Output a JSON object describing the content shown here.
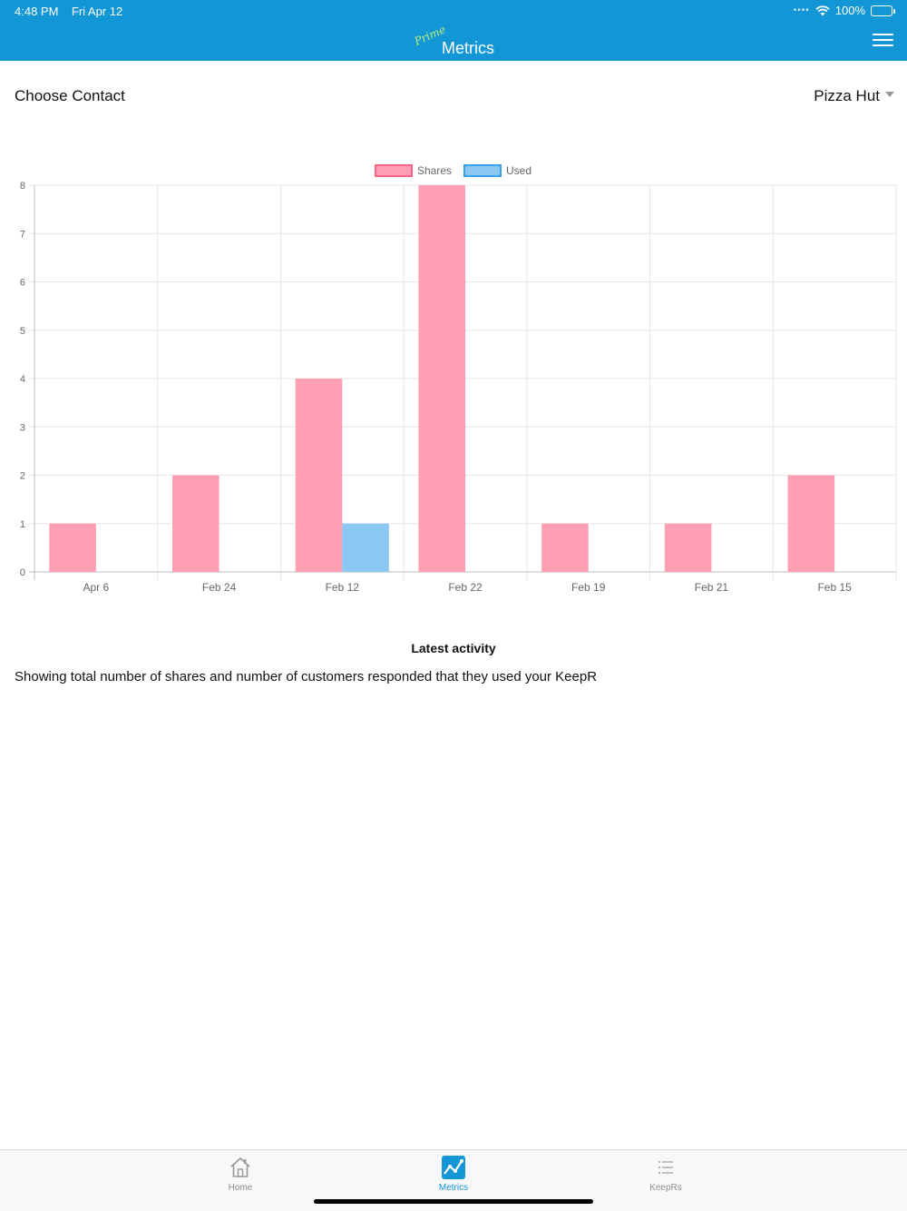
{
  "status_bar": {
    "time": "4:48 PM",
    "date": "Fri Apr 12",
    "battery": "100%"
  },
  "header": {
    "brand_prefix": "Prime",
    "title": "Metrics",
    "menu_icon": "hamburger-menu-icon"
  },
  "contact": {
    "label": "Choose Contact",
    "selected": "Pizza Hut"
  },
  "chart_data": {
    "type": "bar",
    "categories": [
      "Apr 6",
      "Feb 24",
      "Feb 12",
      "Feb 22",
      "Feb 19",
      "Feb 21",
      "Feb 15"
    ],
    "series": [
      {
        "name": "Shares",
        "values": [
          1,
          2,
          4,
          8,
          1,
          1,
          2
        ],
        "color": "#ff9fb4",
        "border": "#ff6384"
      },
      {
        "name": "Used",
        "values": [
          0,
          0,
          1,
          0,
          0,
          0,
          0
        ],
        "color": "#8bc8f2",
        "border": "#36a2eb"
      }
    ],
    "ylim": [
      0,
      8
    ],
    "yticks": [
      0,
      1,
      2,
      3,
      4,
      5,
      6,
      7,
      8
    ],
    "grid": true,
    "legend_position": "top"
  },
  "activity": {
    "title": "Latest activity",
    "description": "Showing total number of shares and number of customers responded that they used your KeepR"
  },
  "tabs": [
    {
      "label": "Home",
      "icon": "home-icon",
      "active": false
    },
    {
      "label": "Metrics",
      "icon": "metrics-icon",
      "active": true
    },
    {
      "label": "KeepRs",
      "icon": "list-icon",
      "active": false
    }
  ],
  "colors": {
    "accent": "#1396d6"
  }
}
